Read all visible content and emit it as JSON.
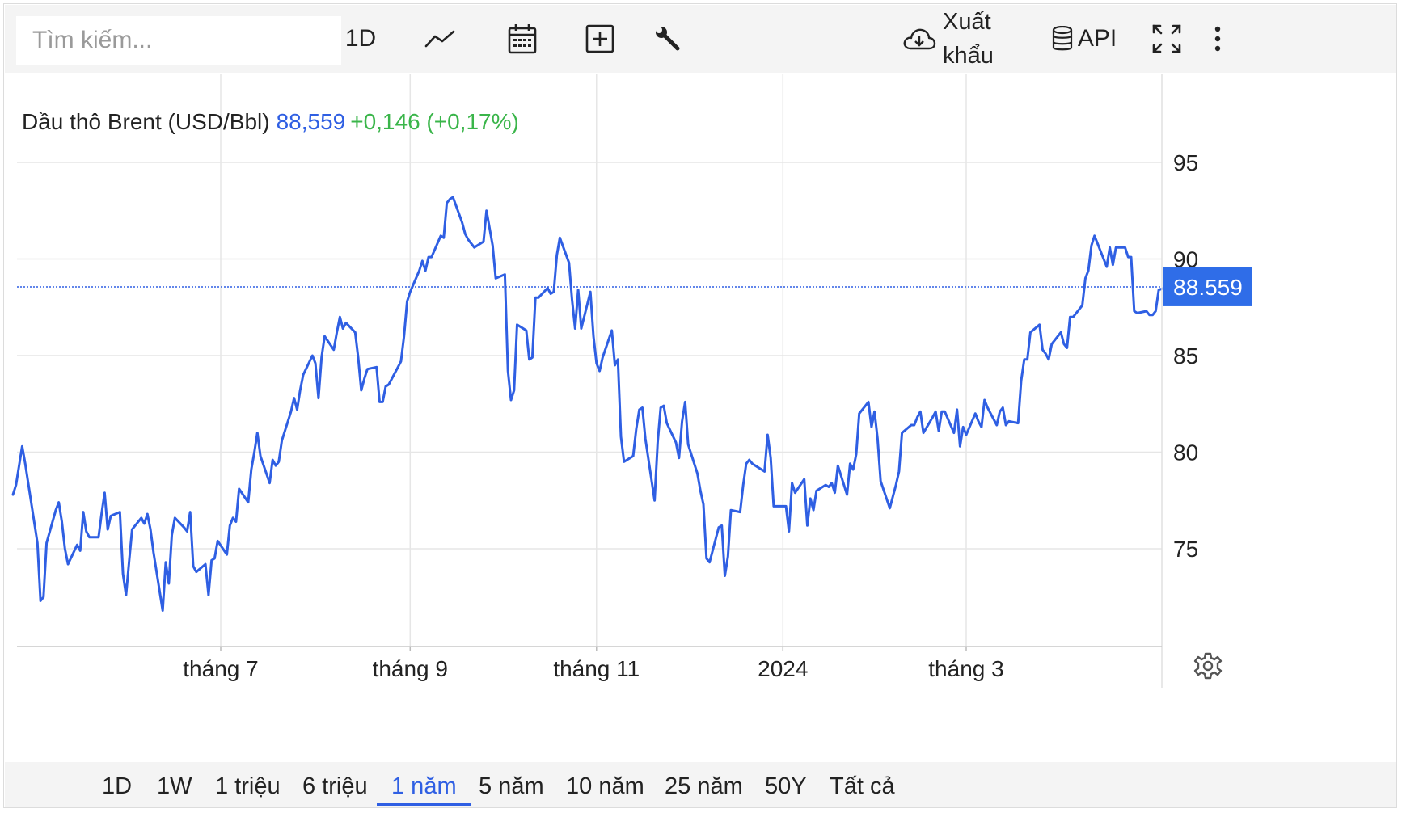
{
  "toolbar": {
    "search_placeholder": "Tìm kiếm...",
    "interval_label": "1D",
    "export_label": "Xuất khẩu",
    "api_label": "API",
    "icons": [
      "line-chart-icon",
      "calendar-icon",
      "add-box-icon",
      "wrench-icon",
      "cloud-download-icon",
      "database-icon",
      "fullscreen-icon",
      "more-vertical-icon",
      "settings-icon"
    ]
  },
  "legend": {
    "name": "Dầu thô Brent (USD/Bbl)",
    "price": "88,559",
    "change": "+0,146 (+0,17%)"
  },
  "ranges": [
    "1D",
    "1W",
    "1 triệu",
    "6 triệu",
    "1 năm",
    "5 năm",
    "10 năm",
    "25 năm",
    "50Y",
    "Tất cả"
  ],
  "active_range": "1 năm",
  "colors": {
    "line": "#2f5fe3",
    "positive": "#3ab54a",
    "price_tag": "#2f6de8",
    "grid": "#e6e6e6"
  },
  "chart_data": {
    "type": "line",
    "title": "Dầu thô Brent (USD/Bbl)",
    "x_tick_labels": [
      "tháng 7",
      "tháng 9",
      "tháng 11",
      "2024",
      "tháng 3"
    ],
    "x_tick_dates": [
      "2023-07-01",
      "2023-09-01",
      "2023-11-01",
      "2024-01-01",
      "2024-03-01"
    ],
    "y_ticks": [
      75,
      80,
      85,
      90,
      95
    ],
    "ylim": [
      70,
      100
    ],
    "last_value_label": "88.559",
    "last_value": 88.559,
    "grid": true,
    "series": [
      {
        "values": [
          [
            "2023-04-24",
            77.8
          ],
          [
            "2023-04-25",
            78.3
          ],
          [
            "2023-04-27",
            80.3
          ],
          [
            "2023-04-28",
            79.4
          ],
          [
            "2023-05-02",
            75.3
          ],
          [
            "2023-05-03",
            72.3
          ],
          [
            "2023-05-04",
            72.5
          ],
          [
            "2023-05-05",
            75.3
          ],
          [
            "2023-05-08",
            77.0
          ],
          [
            "2023-05-09",
            77.4
          ],
          [
            "2023-05-10",
            76.4
          ],
          [
            "2023-05-11",
            75.0
          ],
          [
            "2023-05-12",
            74.2
          ],
          [
            "2023-05-15",
            75.2
          ],
          [
            "2023-05-16",
            74.9
          ],
          [
            "2023-05-17",
            76.9
          ],
          [
            "2023-05-18",
            75.9
          ],
          [
            "2023-05-19",
            75.6
          ],
          [
            "2023-05-22",
            75.6
          ],
          [
            "2023-05-23",
            76.8
          ],
          [
            "2023-05-24",
            77.9
          ],
          [
            "2023-05-25",
            76.0
          ],
          [
            "2023-05-26",
            76.7
          ],
          [
            "2023-05-29",
            76.9
          ],
          [
            "2023-05-30",
            73.7
          ],
          [
            "2023-05-31",
            72.6
          ],
          [
            "2023-06-01",
            74.3
          ],
          [
            "2023-06-02",
            76.0
          ],
          [
            "2023-06-05",
            76.6
          ],
          [
            "2023-06-06",
            76.3
          ],
          [
            "2023-06-07",
            76.8
          ],
          [
            "2023-06-08",
            76.0
          ],
          [
            "2023-06-09",
            74.8
          ],
          [
            "2023-06-12",
            71.8
          ],
          [
            "2023-06-13",
            74.3
          ],
          [
            "2023-06-14",
            73.2
          ],
          [
            "2023-06-15",
            75.7
          ],
          [
            "2023-06-16",
            76.6
          ],
          [
            "2023-06-19",
            76.1
          ],
          [
            "2023-06-20",
            75.9
          ],
          [
            "2023-06-21",
            76.9
          ],
          [
            "2023-06-22",
            74.1
          ],
          [
            "2023-06-23",
            73.8
          ],
          [
            "2023-06-26",
            74.2
          ],
          [
            "2023-06-27",
            72.6
          ],
          [
            "2023-06-28",
            74.4
          ],
          [
            "2023-06-29",
            74.5
          ],
          [
            "2023-06-30",
            75.4
          ],
          [
            "2023-07-03",
            74.7
          ],
          [
            "2023-07-04",
            76.2
          ],
          [
            "2023-07-05",
            76.6
          ],
          [
            "2023-07-06",
            76.4
          ],
          [
            "2023-07-07",
            78.1
          ],
          [
            "2023-07-10",
            77.4
          ],
          [
            "2023-07-11",
            79.1
          ],
          [
            "2023-07-12",
            80.0
          ],
          [
            "2023-07-13",
            81.0
          ],
          [
            "2023-07-14",
            79.8
          ],
          [
            "2023-07-17",
            78.4
          ],
          [
            "2023-07-18",
            79.6
          ],
          [
            "2023-07-19",
            79.3
          ],
          [
            "2023-07-20",
            79.5
          ],
          [
            "2023-07-21",
            80.6
          ],
          [
            "2023-07-24",
            82.1
          ],
          [
            "2023-07-25",
            82.8
          ],
          [
            "2023-07-26",
            82.2
          ],
          [
            "2023-07-27",
            83.2
          ],
          [
            "2023-07-28",
            84.0
          ],
          [
            "2023-07-31",
            85.0
          ],
          [
            "2023-08-01",
            84.6
          ],
          [
            "2023-08-02",
            82.8
          ],
          [
            "2023-08-03",
            84.9
          ],
          [
            "2023-08-04",
            86.0
          ],
          [
            "2023-08-07",
            85.3
          ],
          [
            "2023-08-08",
            86.2
          ],
          [
            "2023-08-09",
            87.0
          ],
          [
            "2023-08-10",
            86.4
          ],
          [
            "2023-08-11",
            86.7
          ],
          [
            "2023-08-14",
            86.2
          ],
          [
            "2023-08-15",
            84.9
          ],
          [
            "2023-08-16",
            83.2
          ],
          [
            "2023-08-17",
            83.8
          ],
          [
            "2023-08-18",
            84.3
          ],
          [
            "2023-08-21",
            84.4
          ],
          [
            "2023-08-22",
            82.6
          ],
          [
            "2023-08-23",
            82.6
          ],
          [
            "2023-08-24",
            83.4
          ],
          [
            "2023-08-25",
            83.5
          ],
          [
            "2023-08-28",
            84.4
          ],
          [
            "2023-08-29",
            84.7
          ],
          [
            "2023-08-30",
            86.0
          ],
          [
            "2023-08-31",
            87.8
          ],
          [
            "2023-09-01",
            88.3
          ],
          [
            "2023-09-04",
            89.4
          ],
          [
            "2023-09-05",
            89.9
          ],
          [
            "2023-09-06",
            89.4
          ],
          [
            "2023-09-07",
            90.1
          ],
          [
            "2023-09-08",
            90.1
          ],
          [
            "2023-09-11",
            91.2
          ],
          [
            "2023-09-12",
            91.1
          ],
          [
            "2023-09-13",
            92.9
          ],
          [
            "2023-09-14",
            93.1
          ],
          [
            "2023-09-15",
            93.2
          ],
          [
            "2023-09-18",
            91.9
          ],
          [
            "2023-09-19",
            91.3
          ],
          [
            "2023-09-20",
            91.0
          ],
          [
            "2023-09-21",
            90.8
          ],
          [
            "2023-09-22",
            90.6
          ],
          [
            "2023-09-25",
            90.9
          ],
          [
            "2023-09-26",
            92.5
          ],
          [
            "2023-09-27",
            91.6
          ],
          [
            "2023-09-28",
            90.7
          ],
          [
            "2023-09-29",
            89.0
          ],
          [
            "2023-10-02",
            89.2
          ],
          [
            "2023-10-03",
            84.2
          ],
          [
            "2023-10-04",
            82.7
          ],
          [
            "2023-10-05",
            83.2
          ],
          [
            "2023-10-06",
            86.6
          ],
          [
            "2023-10-09",
            86.3
          ],
          [
            "2023-10-10",
            84.8
          ],
          [
            "2023-10-11",
            84.9
          ],
          [
            "2023-10-12",
            88.0
          ],
          [
            "2023-10-13",
            88.0
          ],
          [
            "2023-10-16",
            88.5
          ],
          [
            "2023-10-17",
            88.2
          ],
          [
            "2023-10-18",
            88.3
          ],
          [
            "2023-10-19",
            90.2
          ],
          [
            "2023-10-20",
            91.1
          ],
          [
            "2023-10-23",
            89.8
          ],
          [
            "2023-10-24",
            87.9
          ],
          [
            "2023-10-25",
            86.4
          ],
          [
            "2023-10-26",
            88.4
          ],
          [
            "2023-10-27",
            86.4
          ],
          [
            "2023-10-30",
            88.3
          ],
          [
            "2023-10-31",
            86.0
          ],
          [
            "2023-11-01",
            84.6
          ],
          [
            "2023-11-02",
            84.2
          ],
          [
            "2023-11-03",
            84.9
          ],
          [
            "2023-11-06",
            86.3
          ],
          [
            "2023-11-07",
            84.5
          ],
          [
            "2023-11-08",
            84.8
          ],
          [
            "2023-11-09",
            80.8
          ],
          [
            "2023-11-10",
            79.5
          ],
          [
            "2023-11-13",
            79.8
          ],
          [
            "2023-11-14",
            81.2
          ],
          [
            "2023-11-15",
            82.2
          ],
          [
            "2023-11-16",
            82.3
          ],
          [
            "2023-11-17",
            80.7
          ],
          [
            "2023-11-20",
            77.5
          ],
          [
            "2023-11-21",
            80.5
          ],
          [
            "2023-11-22",
            82.3
          ],
          [
            "2023-11-23",
            82.4
          ],
          [
            "2023-11-24",
            81.5
          ],
          [
            "2023-11-27",
            80.5
          ],
          [
            "2023-11-28",
            79.7
          ],
          [
            "2023-11-29",
            81.6
          ],
          [
            "2023-11-30",
            82.6
          ],
          [
            "2023-12-01",
            80.4
          ],
          [
            "2023-12-04",
            78.9
          ],
          [
            "2023-12-05",
            78.0
          ],
          [
            "2023-12-06",
            77.3
          ],
          [
            "2023-12-07",
            74.5
          ],
          [
            "2023-12-08",
            74.3
          ],
          [
            "2023-12-11",
            76.1
          ],
          [
            "2023-12-12",
            76.2
          ],
          [
            "2023-12-13",
            73.6
          ],
          [
            "2023-12-14",
            74.6
          ],
          [
            "2023-12-15",
            77.0
          ],
          [
            "2023-12-18",
            76.9
          ],
          [
            "2023-12-19",
            78.3
          ],
          [
            "2023-12-20",
            79.4
          ],
          [
            "2023-12-21",
            79.6
          ],
          [
            "2023-12-22",
            79.4
          ],
          [
            "2023-12-26",
            79.0
          ],
          [
            "2023-12-27",
            80.9
          ],
          [
            "2023-12-28",
            79.7
          ],
          [
            "2023-12-29",
            77.2
          ],
          [
            "2024-01-02",
            77.2
          ],
          [
            "2024-01-03",
            75.9
          ],
          [
            "2024-01-04",
            78.4
          ],
          [
            "2024-01-05",
            77.9
          ],
          [
            "2024-01-08",
            78.6
          ],
          [
            "2024-01-09",
            76.2
          ],
          [
            "2024-01-10",
            77.6
          ],
          [
            "2024-01-11",
            77.0
          ],
          [
            "2024-01-12",
            78.0
          ],
          [
            "2024-01-15",
            78.3
          ],
          [
            "2024-01-16",
            78.2
          ],
          [
            "2024-01-17",
            78.4
          ],
          [
            "2024-01-18",
            77.9
          ],
          [
            "2024-01-19",
            79.3
          ],
          [
            "2024-01-22",
            77.8
          ],
          [
            "2024-01-23",
            79.4
          ],
          [
            "2024-01-24",
            79.1
          ],
          [
            "2024-01-25",
            79.9
          ],
          [
            "2024-01-26",
            82.0
          ],
          [
            "2024-01-29",
            82.6
          ],
          [
            "2024-01-30",
            81.3
          ],
          [
            "2024-01-31",
            82.1
          ],
          [
            "2024-02-01",
            80.7
          ],
          [
            "2024-02-02",
            78.5
          ],
          [
            "2024-02-05",
            77.1
          ],
          [
            "2024-02-06",
            77.7
          ],
          [
            "2024-02-07",
            78.3
          ],
          [
            "2024-02-08",
            79.0
          ],
          [
            "2024-02-09",
            81.0
          ],
          [
            "2024-02-12",
            81.4
          ],
          [
            "2024-02-13",
            81.4
          ],
          [
            "2024-02-14",
            81.8
          ],
          [
            "2024-02-15",
            82.1
          ],
          [
            "2024-02-16",
            81.0
          ],
          [
            "2024-02-19",
            81.8
          ],
          [
            "2024-02-20",
            82.1
          ],
          [
            "2024-02-21",
            81.1
          ],
          [
            "2024-02-22",
            82.1
          ],
          [
            "2024-02-23",
            82.1
          ],
          [
            "2024-02-26",
            81.0
          ],
          [
            "2024-02-27",
            82.2
          ],
          [
            "2024-02-28",
            80.3
          ],
          [
            "2024-02-29",
            81.3
          ],
          [
            "2024-03-01",
            80.9
          ],
          [
            "2024-03-04",
            82.0
          ],
          [
            "2024-03-05",
            81.6
          ],
          [
            "2024-03-06",
            81.3
          ],
          [
            "2024-03-07",
            82.7
          ],
          [
            "2024-03-08",
            82.3
          ],
          [
            "2024-03-11",
            81.4
          ],
          [
            "2024-03-12",
            82.1
          ],
          [
            "2024-03-13",
            82.3
          ],
          [
            "2024-03-14",
            81.4
          ],
          [
            "2024-03-15",
            81.6
          ],
          [
            "2024-03-18",
            81.5
          ],
          [
            "2024-03-19",
            83.7
          ],
          [
            "2024-03-20",
            84.8
          ],
          [
            "2024-03-21",
            84.8
          ],
          [
            "2024-03-22",
            86.2
          ],
          [
            "2024-03-25",
            86.6
          ],
          [
            "2024-03-26",
            85.3
          ],
          [
            "2024-03-27",
            85.1
          ],
          [
            "2024-03-28",
            84.8
          ],
          [
            "2024-03-29",
            85.6
          ],
          [
            "2024-04-01",
            86.2
          ],
          [
            "2024-04-02",
            85.6
          ],
          [
            "2024-04-03",
            85.4
          ],
          [
            "2024-04-04",
            87.0
          ],
          [
            "2024-04-05",
            87.0
          ],
          [
            "2024-04-08",
            87.6
          ],
          [
            "2024-04-09",
            89.0
          ],
          [
            "2024-04-10",
            89.4
          ],
          [
            "2024-04-11",
            90.7
          ],
          [
            "2024-04-12",
            91.2
          ],
          [
            "2024-04-15",
            90.0
          ],
          [
            "2024-04-16",
            89.6
          ],
          [
            "2024-04-17",
            90.6
          ],
          [
            "2024-04-18",
            89.7
          ],
          [
            "2024-04-19",
            90.6
          ],
          [
            "2024-04-22",
            90.6
          ],
          [
            "2024-04-23",
            90.1
          ],
          [
            "2024-04-24",
            90.1
          ],
          [
            "2024-04-25",
            87.3
          ],
          [
            "2024-04-26",
            87.2
          ],
          [
            "2024-04-29",
            87.3
          ],
          [
            "2024-04-30",
            87.1
          ],
          [
            "2024-05-01",
            87.1
          ],
          [
            "2024-05-02",
            87.3
          ],
          [
            "2024-05-03",
            88.4
          ],
          [
            "2024-05-06",
            88.559
          ]
        ]
      }
    ]
  }
}
